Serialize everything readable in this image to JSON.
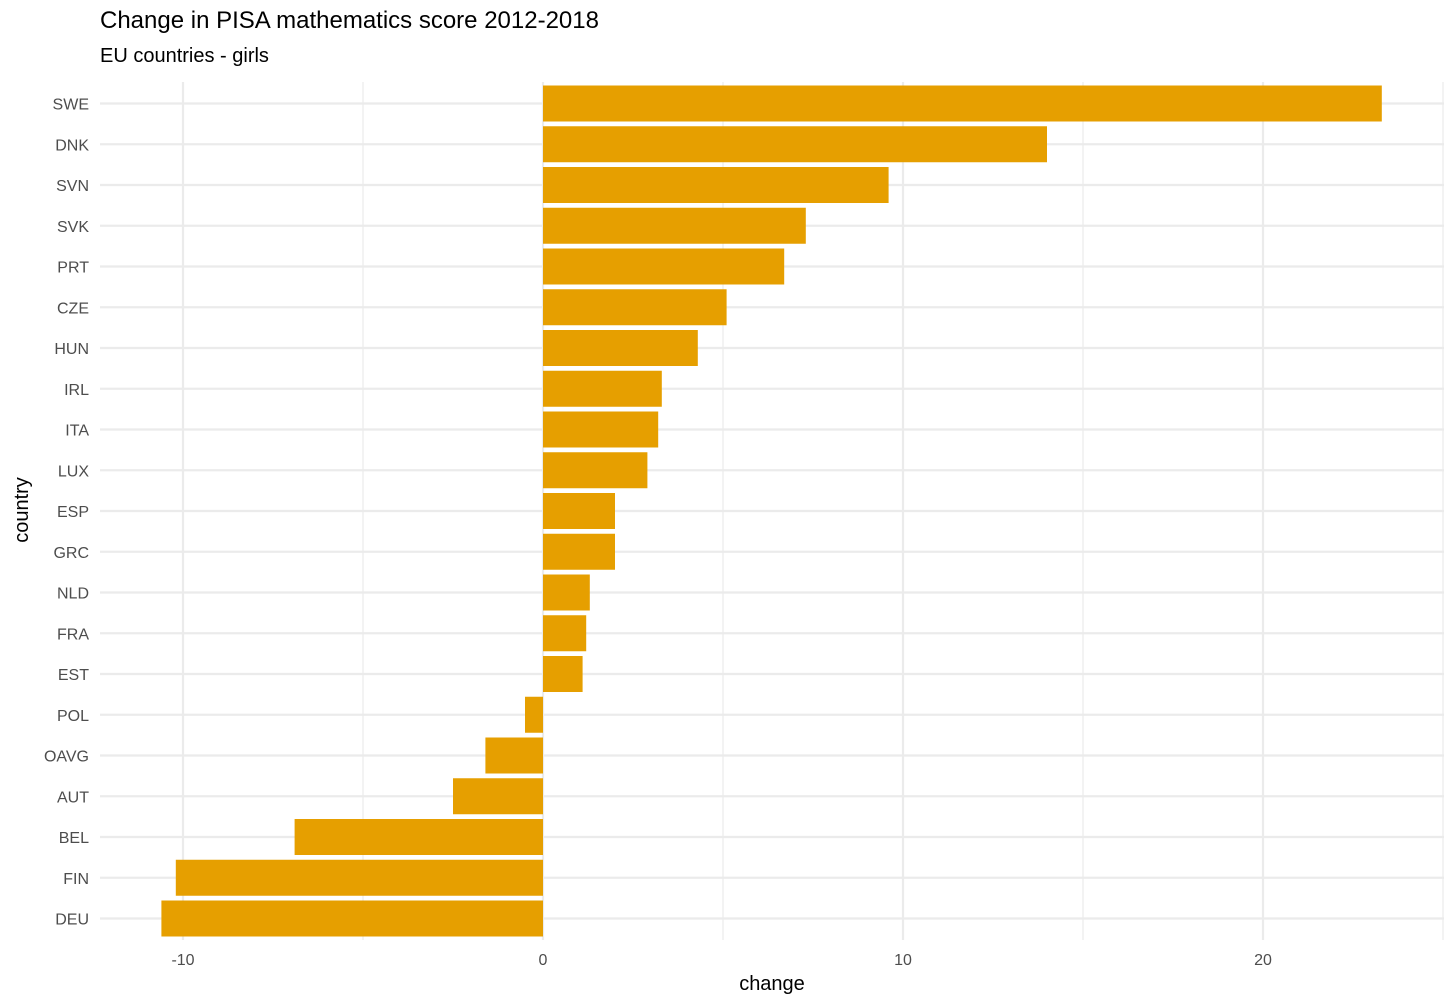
{
  "chart_data": {
    "type": "bar",
    "orientation": "horizontal",
    "title": "Change in PISA mathematics score 2012-2018",
    "subtitle": "EU countries - girls",
    "xlabel": "change",
    "ylabel": "country",
    "xlim": [
      -10.5,
      25
    ],
    "x_ticks": [
      -10,
      0,
      10,
      20
    ],
    "x_tick_labels": [
      "-10",
      "0",
      "10",
      "20"
    ],
    "grid": true,
    "bar_color": "#E69F00",
    "categories": [
      "SWE",
      "DNK",
      "SVN",
      "SVK",
      "PRT",
      "CZE",
      "HUN",
      "IRL",
      "ITA",
      "LUX",
      "ESP",
      "GRC",
      "NLD",
      "FRA",
      "EST",
      "POL",
      "OAVG",
      "AUT",
      "BEL",
      "FIN",
      "DEU"
    ],
    "values": [
      23.3,
      14.0,
      9.6,
      7.3,
      6.7,
      5.1,
      4.3,
      3.3,
      3.2,
      2.9,
      2.0,
      2.0,
      1.3,
      1.2,
      1.1,
      -0.5,
      -1.6,
      -2.5,
      -6.9,
      -10.2,
      -10.6
    ]
  }
}
